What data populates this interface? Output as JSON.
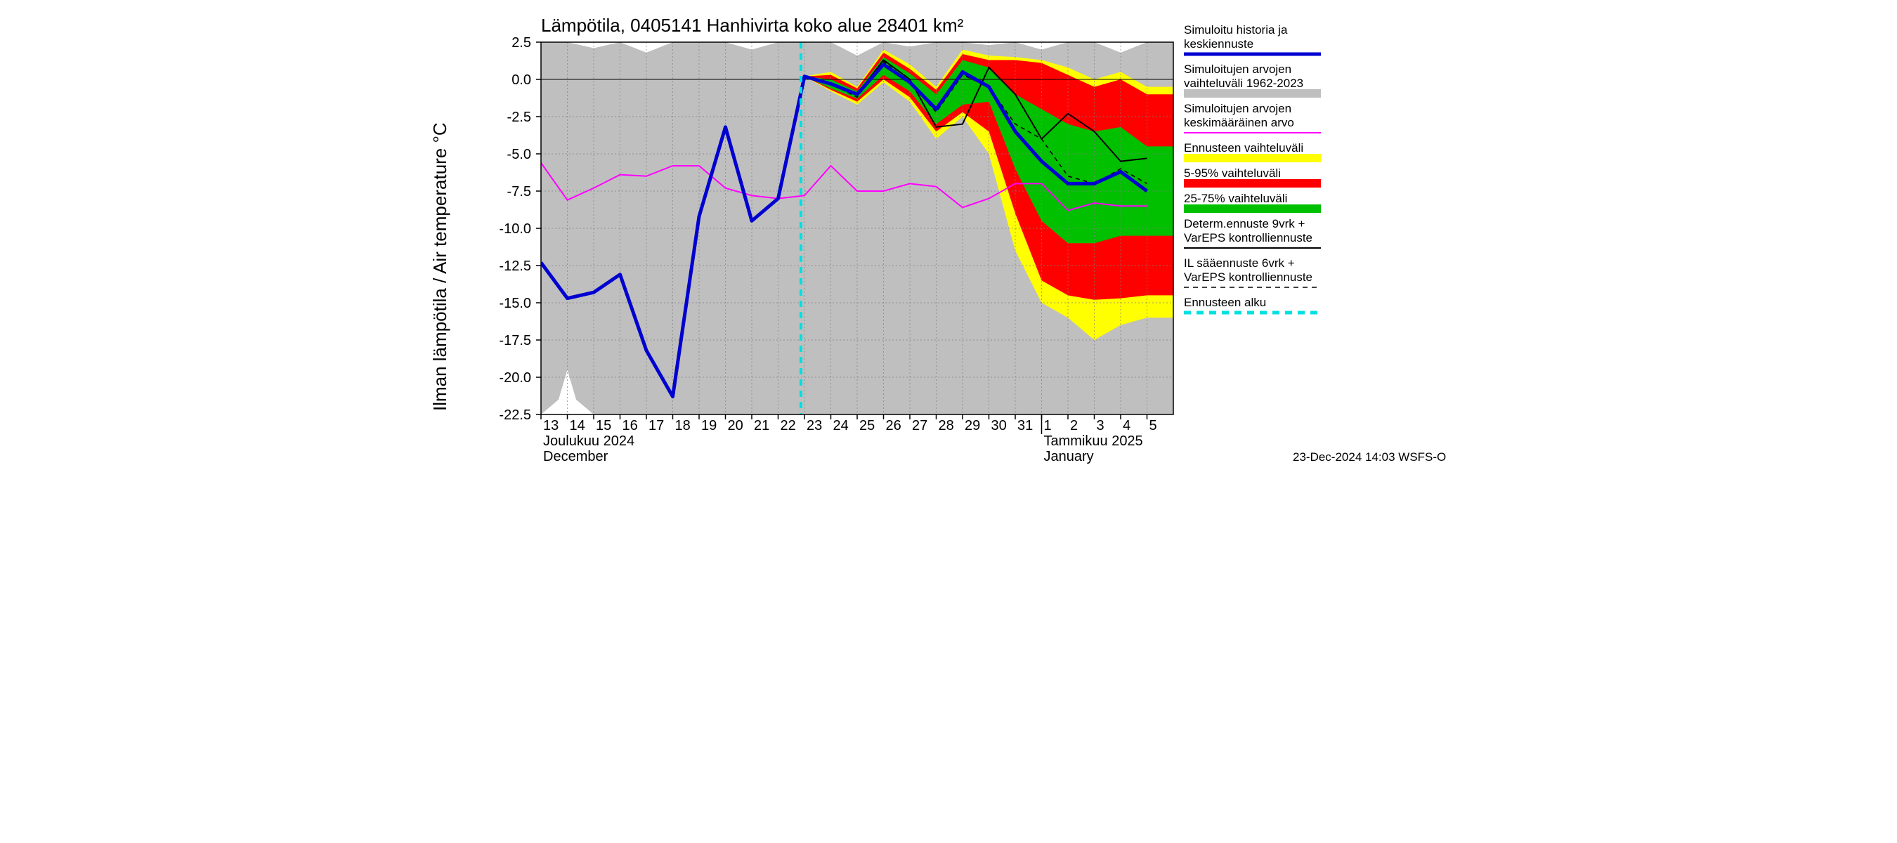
{
  "title": "Lämpötila, 0405141 Hanhivirta koko alue 28401 km²",
  "ylabel": "Ilman lämpötila / Air temperature    °C",
  "footer": "23-Dec-2024 14:03 WSFS-O",
  "chart": {
    "type": "line",
    "background_color": "#ffffff",
    "grid_color": "#808080",
    "axis_color": "#000000",
    "title_fontsize": 26,
    "label_fontsize": 26,
    "tick_fontsize": 20,
    "legend_fontsize": 17,
    "ylim": [
      -22.5,
      2.5
    ],
    "ytick_step": 2.5,
    "x_days": [
      "13",
      "14",
      "15",
      "16",
      "17",
      "18",
      "19",
      "20",
      "21",
      "22",
      "23",
      "24",
      "25",
      "26",
      "27",
      "28",
      "29",
      "30",
      "31",
      "1",
      "2",
      "3",
      "4",
      "5"
    ],
    "month_labels": {
      "left_top": "Joulukuu  2024",
      "left_bottom": "December",
      "right_top": "Tammikuu  2025",
      "right_bottom": "January"
    },
    "forecast_start_index": 10,
    "month_split_index": 19,
    "colors": {
      "hist_band": "#bfbfbf",
      "yellow": "#ffff00",
      "red": "#ff0000",
      "green": "#00c000",
      "blue": "#0000d0",
      "magenta": "#ff00ff",
      "black": "#000000",
      "cyan": "#00e0e0"
    },
    "line_widths": {
      "blue": 5,
      "magenta": 2,
      "black_solid": 2,
      "black_dash": 1.5,
      "cyan_dash": 4
    },
    "series": {
      "hist_upper": [
        2.5,
        2.5,
        2.1,
        2.5,
        1.8,
        2.5,
        2.5,
        2.5,
        2.0,
        2.5,
        2.5,
        2.5,
        1.6,
        2.5,
        2.2,
        2.5,
        2.5,
        2.3,
        2.5,
        2.0,
        2.5,
        2.5,
        1.8,
        2.5
      ],
      "hist_lower": [
        -22.5,
        -21.0,
        -22.5,
        -22.5,
        -22.5,
        -22.5,
        -22.5,
        -22.5,
        -22.5,
        -22.5,
        -22.5,
        -22.5,
        -22.5,
        -22.5,
        -22.5,
        -22.5,
        -22.5,
        -22.5,
        -22.5,
        -22.5,
        -22.5,
        -22.5,
        -22.5,
        -22.5
      ],
      "yellow_upper": [
        null,
        null,
        null,
        null,
        null,
        null,
        null,
        null,
        null,
        null,
        0.2,
        0.5,
        -0.5,
        2.0,
        1.0,
        -0.5,
        2.0,
        1.6,
        1.5,
        1.3,
        0.8,
        0.0,
        0.5,
        -0.5
      ],
      "yellow_lower": [
        null,
        null,
        null,
        null,
        null,
        null,
        null,
        null,
        null,
        null,
        0.2,
        -0.8,
        -1.7,
        -0.2,
        -1.5,
        -4.0,
        -2.5,
        -5.0,
        -11.5,
        -15.0,
        -16.0,
        -17.5,
        -16.5,
        -16.0
      ],
      "red_upper": [
        null,
        null,
        null,
        null,
        null,
        null,
        null,
        null,
        null,
        null,
        0.2,
        0.3,
        -0.6,
        1.8,
        0.7,
        -0.7,
        1.7,
        1.3,
        1.3,
        1.1,
        0.3,
        -0.5,
        0.0,
        -1.0
      ],
      "red_lower": [
        null,
        null,
        null,
        null,
        null,
        null,
        null,
        null,
        null,
        null,
        0.2,
        -0.7,
        -1.5,
        0.0,
        -1.2,
        -3.5,
        -2.2,
        -3.5,
        -9.0,
        -13.5,
        -14.5,
        -14.8,
        -14.7,
        -14.5
      ],
      "green_upper": [
        null,
        null,
        null,
        null,
        null,
        null,
        null,
        null,
        null,
        null,
        0.2,
        0.0,
        -0.8,
        1.5,
        0.4,
        -1.0,
        1.3,
        0.8,
        -1.0,
        -2.0,
        -3.0,
        -3.5,
        -3.2,
        -4.5
      ],
      "green_lower": [
        null,
        null,
        null,
        null,
        null,
        null,
        null,
        null,
        null,
        null,
        0.2,
        -0.6,
        -1.3,
        0.3,
        -0.8,
        -3.0,
        -1.7,
        -1.5,
        -6.0,
        -9.5,
        -11.0,
        -11.0,
        -10.5,
        -10.5
      ],
      "blue": [
        -12.3,
        -14.7,
        -14.3,
        -13.1,
        -18.2,
        -21.3,
        -9.2,
        -3.2,
        -9.5,
        -8.0,
        0.2,
        -0.3,
        -1.0,
        1.0,
        -0.2,
        -2.0,
        0.5,
        -0.5,
        -3.5,
        -5.5,
        -7.0,
        -7.0,
        -6.2,
        -7.5
      ],
      "magenta": [
        -5.6,
        -8.1,
        -7.3,
        -6.4,
        -6.5,
        -5.8,
        -5.8,
        -7.3,
        -7.8,
        -8.0,
        -7.8,
        -5.8,
        -7.5,
        -7.5,
        -7.0,
        -7.2,
        -8.6,
        -8.0,
        -7.0,
        -7.0,
        -8.8,
        -8.3,
        -8.5,
        -8.5
      ],
      "black_solid": [
        null,
        null,
        null,
        null,
        null,
        null,
        null,
        null,
        null,
        null,
        0.2,
        -0.3,
        -1.0,
        1.3,
        0.0,
        -3.2,
        -3.0,
        0.8,
        -1.0,
        -4.0,
        -2.3,
        -3.5,
        -5.5,
        -5.3
      ],
      "black_dash": [
        null,
        null,
        null,
        null,
        null,
        null,
        null,
        null,
        null,
        null,
        0.2,
        -0.3,
        -1.2,
        1.2,
        -0.2,
        -2.2,
        0.3,
        -0.5,
        -3.0,
        -4.0,
        -6.5,
        -7.0,
        -6.0,
        -7.0
      ]
    },
    "white_triangle": {
      "x_index": 1.0,
      "base_half": 0.5,
      "apex_y": -19.5
    }
  },
  "legend": {
    "items": [
      {
        "lines": [
          "Simuloitu historia ja",
          "keskiennuste"
        ],
        "type": "line",
        "color": "#0000d0",
        "width": 5
      },
      {
        "lines": [
          "Simuloitujen arvojen",
          "vaihteluväli 1962-2023"
        ],
        "type": "band",
        "color": "#bfbfbf"
      },
      {
        "lines": [
          "Simuloitujen arvojen",
          "keskimääräinen arvo"
        ],
        "type": "line",
        "color": "#ff00ff",
        "width": 2
      },
      {
        "lines": [
          "Ennusteen vaihteluväli"
        ],
        "type": "band",
        "color": "#ffff00"
      },
      {
        "lines": [
          "5-95% vaihteluväli"
        ],
        "type": "band",
        "color": "#ff0000"
      },
      {
        "lines": [
          "25-75% vaihteluväli"
        ],
        "type": "band",
        "color": "#00c000"
      },
      {
        "lines": [
          "Determ.ennuste 9vrk +",
          "VarEPS kontrolliennuste"
        ],
        "type": "line",
        "color": "#000000",
        "width": 2
      },
      {
        "lines": [
          "IL sääennuste 6vrk  +",
          " VarEPS kontrolliennuste"
        ],
        "type": "dash",
        "color": "#000000",
        "width": 1.5
      },
      {
        "lines": [
          "Ennusteen alku"
        ],
        "type": "dash",
        "color": "#00e0e0",
        "width": 5
      }
    ]
  }
}
